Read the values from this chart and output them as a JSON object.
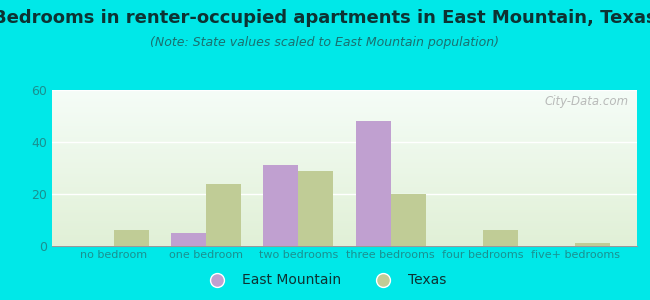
{
  "title": "Bedrooms in renter-occupied apartments in East Mountain, Texas",
  "subtitle": "(Note: State values scaled to East Mountain population)",
  "categories": [
    "no bedroom",
    "one bedroom",
    "two bedrooms",
    "three bedrooms",
    "four bedrooms",
    "five+ bedrooms"
  ],
  "east_mountain": [
    0,
    5,
    31,
    48,
    0,
    0
  ],
  "texas": [
    6,
    24,
    29,
    20,
    6,
    1
  ],
  "em_color": "#c0a0d0",
  "tx_color": "#c0cc96",
  "background_outer": "#00e8e8",
  "ylim": [
    0,
    60
  ],
  "yticks": [
    0,
    20,
    40,
    60
  ],
  "title_fontsize": 13,
  "subtitle_fontsize": 9,
  "tick_color": "#1a9090",
  "title_color": "#0d3333",
  "legend_label_em": "East Mountain",
  "legend_label_tx": "Texas",
  "bar_width": 0.38
}
